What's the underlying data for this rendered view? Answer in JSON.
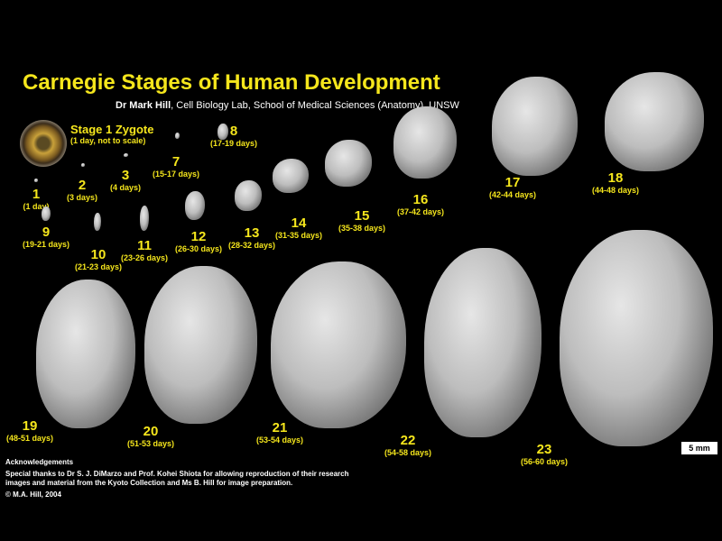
{
  "title": "Carnegie Stages of Human Development",
  "author": {
    "name": "Dr Mark Hill",
    "affiliation": ", Cell Biology Lab, School of Medical Sciences (Anatomy), UNSW"
  },
  "zygote": {
    "label": "Stage 1 Zygote",
    "note": "(1 day, not to scale)"
  },
  "stages": [
    {
      "number": "1",
      "days": "(1 day)"
    },
    {
      "number": "2",
      "days": "(3 days)"
    },
    {
      "number": "3",
      "days": "(4 days)"
    },
    {
      "number": "7",
      "days": "(15-17 days)"
    },
    {
      "number": "8",
      "days": "(17-19 days)"
    },
    {
      "number": "9",
      "days": "(19-21 days)"
    },
    {
      "number": "10",
      "days": "(21-23 days)"
    },
    {
      "number": "11",
      "days": "(23-26 days)"
    },
    {
      "number": "12",
      "days": "(26-30 days)"
    },
    {
      "number": "13",
      "days": "(28-32 days)"
    },
    {
      "number": "14",
      "days": "(31-35 days)"
    },
    {
      "number": "15",
      "days": "(35-38 days)"
    },
    {
      "number": "16",
      "days": "(37-42 days)"
    },
    {
      "number": "17",
      "days": "(42-44 days)"
    },
    {
      "number": "18",
      "days": "(44-48 days)"
    },
    {
      "number": "19",
      "days": "(48-51 days)"
    },
    {
      "number": "20",
      "days": "(51-53 days)"
    },
    {
      "number": "21",
      "days": "(53-54 days)"
    },
    {
      "number": "22",
      "days": "(54-58 days)"
    },
    {
      "number": "23",
      "days": "(56-60 days)"
    }
  ],
  "scale_bar": "5 mm",
  "acknowledgements": {
    "heading": "Acknowledgements",
    "line1": "Special thanks to Dr S. J. DiMarzo and Prof. Kohei Shiota for allowing reproduction of their research",
    "line2": "images and material from the Kyoto Collection and Ms B. Hill for image preparation.",
    "copyright": "© M.A. Hill, 2004"
  },
  "colors": {
    "background": "#000000",
    "label": "#f5e61c",
    "text": "#ffffff"
  }
}
